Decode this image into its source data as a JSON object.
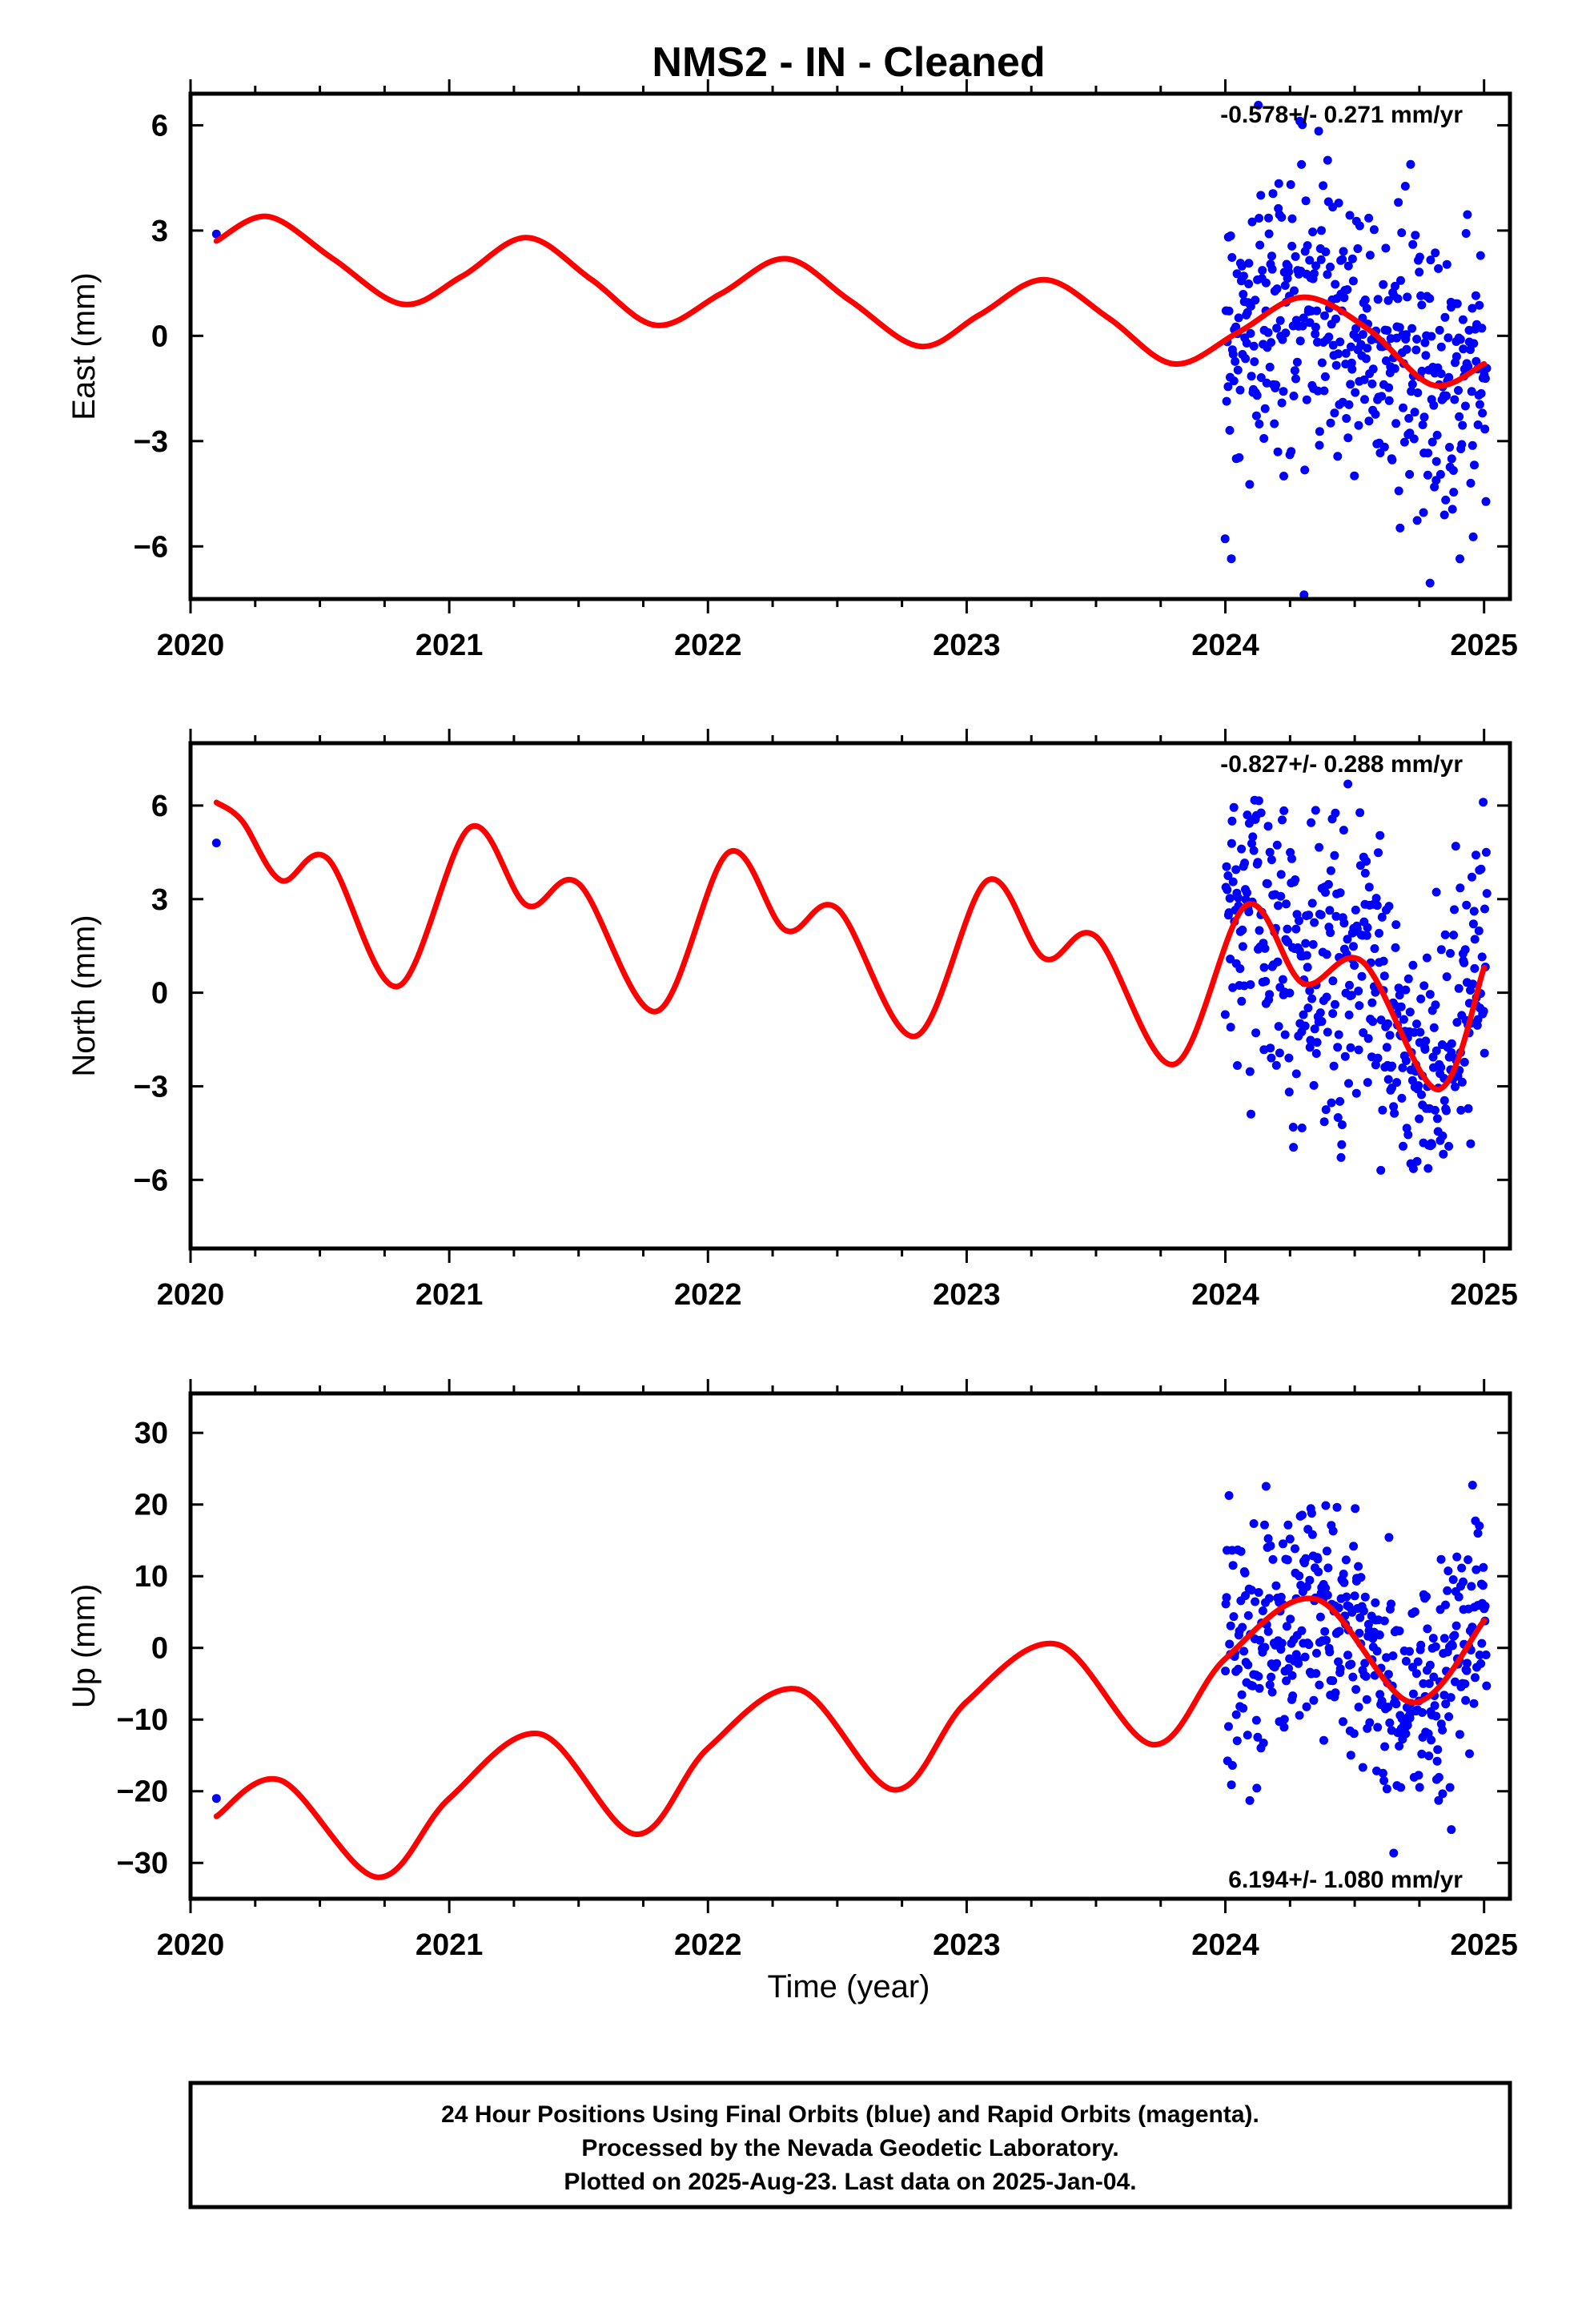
{
  "title": "NMS2  - IN - Cleaned",
  "xlabel": "Time (year)",
  "colors": {
    "data": "#0000ff",
    "fit": "#ff0000",
    "frame": "#000000"
  },
  "footer": {
    "line1": "24 Hour Positions Using Final Orbits (blue) and Rapid Orbits (magenta).",
    "line2": "Processed by the Nevada Geodetic Laboratory.",
    "line3": "Plotted on 2025-Aug-23. Last data on 2025-Jan-04."
  },
  "chart_data": [
    {
      "type": "scatter",
      "component": "east",
      "ylabel": "East (mm)",
      "xlim": [
        2020.0,
        2025.1
      ],
      "ylim": [
        -7.5,
        6.9
      ],
      "xticks": [
        2020,
        2021,
        2022,
        2023,
        2024,
        2025
      ],
      "xtick_labels": [
        "2020",
        "2021",
        "2022",
        "2023",
        "2024",
        "2025"
      ],
      "yticks": [
        6,
        3,
        0,
        -3,
        -6
      ],
      "ytick_labels": [
        "6",
        "3",
        "0",
        "−3",
        "−6"
      ],
      "rate_label": "-0.578+/- 0.271 mm/yr",
      "rate_label_position": "top-right",
      "early_point": {
        "x": 2020.1,
        "y": 2.9
      },
      "points_summary": {
        "x_range": [
          2024.0,
          2025.01
        ],
        "center": 0.0,
        "spread": 2.1
      },
      "fit": {
        "name": "fit",
        "x": [
          2020.1,
          2020.3,
          2020.55,
          2020.82,
          2021.05,
          2021.3,
          2021.55,
          2021.8,
          2022.05,
          2022.3,
          2022.55,
          2022.82,
          2023.05,
          2023.3,
          2023.55,
          2023.8,
          2024.05,
          2024.3,
          2024.55,
          2024.8,
          2025.0
        ],
        "y": [
          2.7,
          3.4,
          2.2,
          0.9,
          1.7,
          2.8,
          1.6,
          0.3,
          1.2,
          2.2,
          1.0,
          -0.3,
          0.6,
          1.6,
          0.5,
          -0.8,
          0.1,
          1.1,
          0.2,
          -1.4,
          -0.8
        ]
      }
    },
    {
      "type": "scatter",
      "component": "north",
      "ylabel": "North (mm)",
      "xlim": [
        2020.0,
        2025.1
      ],
      "ylim": [
        -8.2,
        8.0
      ],
      "xticks": [
        2020,
        2021,
        2022,
        2023,
        2024,
        2025
      ],
      "xtick_labels": [
        "2020",
        "2021",
        "2022",
        "2023",
        "2024",
        "2025"
      ],
      "yticks": [
        6,
        3,
        0,
        -3,
        -6
      ],
      "ytick_labels": [
        "6",
        "3",
        "0",
        "−3",
        "−6"
      ],
      "rate_label": "-0.827+/- 0.288 mm/yr",
      "rate_label_position": "top-right",
      "early_point": {
        "x": 2020.1,
        "y": 4.8
      },
      "points_summary": {
        "x_range": [
          2024.0,
          2025.01
        ],
        "center": 0.2,
        "spread": 2.3
      },
      "fit": {
        "name": "fit",
        "x": [
          2020.1,
          2020.2,
          2020.35,
          2020.53,
          2020.8,
          2021.08,
          2021.3,
          2021.5,
          2021.8,
          2022.08,
          2022.3,
          2022.5,
          2022.8,
          2023.08,
          2023.3,
          2023.5,
          2023.8,
          2024.08,
          2024.3,
          2024.53,
          2024.82,
          2025.0
        ],
        "y": [
          6.1,
          5.5,
          3.6,
          4.3,
          0.2,
          5.3,
          2.8,
          3.5,
          -0.6,
          4.5,
          2.0,
          2.7,
          -1.4,
          3.6,
          1.1,
          1.8,
          -2.3,
          2.8,
          0.3,
          1.0,
          -3.1,
          0.8
        ]
      }
    },
    {
      "type": "scatter",
      "component": "up",
      "ylabel": "Up (mm)",
      "xlim": [
        2020.0,
        2025.1
      ],
      "ylim": [
        -35,
        35.5
      ],
      "xticks": [
        2020,
        2021,
        2022,
        2023,
        2024,
        2025
      ],
      "xtick_labels": [
        "2020",
        "2021",
        "2022",
        "2023",
        "2024",
        "2025"
      ],
      "yticks": [
        30,
        20,
        10,
        0,
        -10,
        -20,
        -30
      ],
      "ytick_labels": [
        "30",
        "20",
        "10",
        "0",
        "−10",
        "−20",
        "−30"
      ],
      "rate_label": "6.194+/- 1.080 mm/yr",
      "rate_label_position": "bottom-right",
      "early_point": {
        "x": 2020.1,
        "y": -21
      },
      "points_summary": {
        "x_range": [
          2024.0,
          2025.01
        ],
        "center": 1.0,
        "spread": 8.0
      },
      "fit": {
        "name": "fit",
        "x": [
          2020.1,
          2020.35,
          2020.72,
          2021.0,
          2021.35,
          2021.72,
          2022.0,
          2022.35,
          2022.72,
          2023.0,
          2023.35,
          2023.72,
          2024.0,
          2024.35,
          2024.72,
          2025.0
        ],
        "y": [
          -23.5,
          -18.5,
          -32.0,
          -21.0,
          -12.0,
          -26.0,
          -14.0,
          -5.8,
          -19.8,
          -7.5,
          0.5,
          -13.5,
          -1.5,
          6.8,
          -7.6,
          3.8
        ]
      }
    }
  ]
}
